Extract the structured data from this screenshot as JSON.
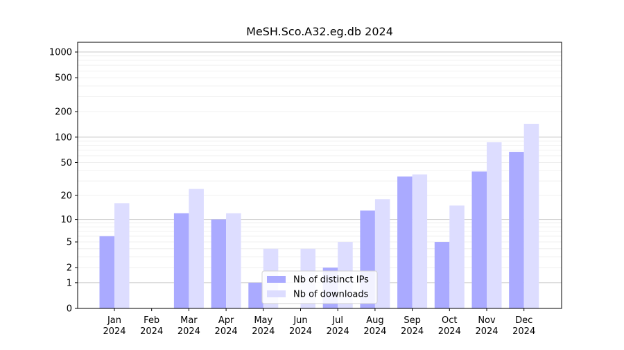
{
  "chart_data": {
    "type": "bar",
    "title": "MeSH.Sco.A32.eg.db 2024",
    "xlabel": "",
    "ylabel": "",
    "scale": "log1p",
    "ylim": [
      0,
      1300
    ],
    "grid": true,
    "legend_position": "bottom-center",
    "categories": [
      [
        "Jan",
        "2024"
      ],
      [
        "Feb",
        "2024"
      ],
      [
        "Mar",
        "2024"
      ],
      [
        "Apr",
        "2024"
      ],
      [
        "May",
        "2024"
      ],
      [
        "Jun",
        "2024"
      ],
      [
        "Jul",
        "2024"
      ],
      [
        "Aug",
        "2024"
      ],
      [
        "Sep",
        "2024"
      ],
      [
        "Oct",
        "2024"
      ],
      [
        "Nov",
        "2024"
      ],
      [
        "Dec",
        "2024"
      ]
    ],
    "yticks": [
      {
        "value": 0,
        "label": "0"
      },
      {
        "value": 1,
        "label": "1"
      },
      {
        "value": 2,
        "label": "2"
      },
      {
        "value": 5,
        "label": "5"
      },
      {
        "value": 10,
        "label": "10"
      },
      {
        "value": 20,
        "label": "20"
      },
      {
        "value": 50,
        "label": "50"
      },
      {
        "value": 100,
        "label": "100"
      },
      {
        "value": 200,
        "label": "200"
      },
      {
        "value": 500,
        "label": "500"
      },
      {
        "value": 1000,
        "label": "1000"
      }
    ],
    "series": [
      {
        "name": "Nb of distinct IPs",
        "color": "#aaaaff",
        "values": [
          6,
          0,
          12,
          10,
          1,
          0,
          2,
          13,
          34,
          5,
          39,
          67
        ]
      },
      {
        "name": "Nb of downloads",
        "color": "#ddddff",
        "values": [
          16,
          0,
          24,
          12,
          4,
          4,
          5,
          18,
          36,
          15,
          87,
          143
        ]
      }
    ]
  }
}
